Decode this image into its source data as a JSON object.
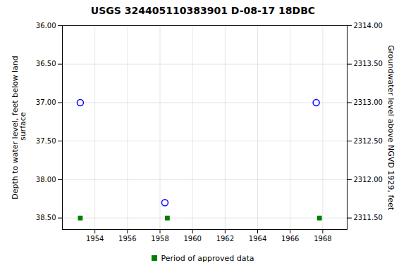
{
  "chart_data": {
    "type": "scatter",
    "title": "USGS 324405110383901 D-08-17 18DBC",
    "ylabel": "Depth to water level, feet below land\n surface",
    "y2label": "Groundwater level above NGVD 1929, feet",
    "xlim": [
      1952.0,
      1969.5
    ],
    "xticks": [
      1954,
      1956,
      1958,
      1960,
      1962,
      1964,
      1966,
      1968
    ],
    "ylim": [
      38.65,
      36.0
    ],
    "yticks": [
      {
        "value": 36.0,
        "label": "36.00"
      },
      {
        "value": 36.5,
        "label": "36.50"
      },
      {
        "value": 37.0,
        "label": "37.00"
      },
      {
        "value": 37.5,
        "label": "37.50"
      },
      {
        "value": 38.0,
        "label": "38.00"
      },
      {
        "value": 38.5,
        "label": "38.50"
      }
    ],
    "y2lim": [
      2311.35,
      2314.0
    ],
    "y2ticks": [
      {
        "value": 2314.0,
        "label": "2314.00"
      },
      {
        "value": 2313.5,
        "label": "2313.50"
      },
      {
        "value": 2313.0,
        "label": "2313.00"
      },
      {
        "value": 2312.5,
        "label": "2312.50"
      },
      {
        "value": 2312.0,
        "label": "2312.00"
      },
      {
        "value": 2311.5,
        "label": "2311.50"
      }
    ],
    "grid": true,
    "legend": "bottom",
    "series": [
      {
        "color": "#0000ff",
        "marker": "circle",
        "x": [
          1953.1,
          1958.3,
          1967.6
        ],
        "values": [
          37.0,
          38.3,
          37.0
        ]
      },
      {
        "name": "Period of approved data",
        "color": "#008000",
        "marker": "square",
        "x": [
          1953.1,
          1958.45,
          1967.8
        ],
        "values": [
          38.5,
          38.5,
          38.5
        ]
      }
    ]
  }
}
